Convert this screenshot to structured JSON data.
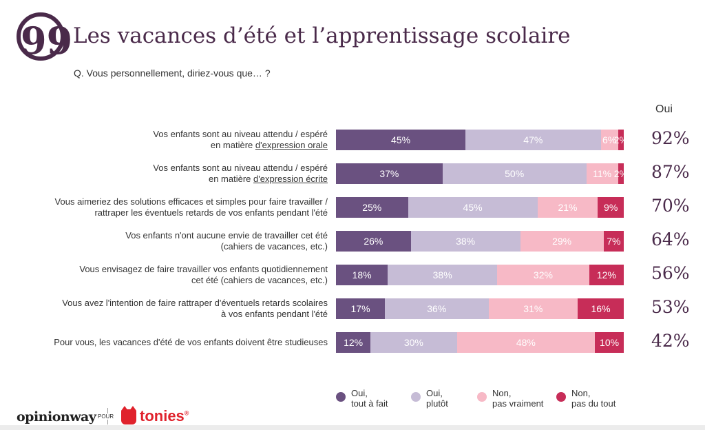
{
  "title": "Les vacances d’été et l’apprentissage scolaire",
  "question": "Q. Vous personnellement, diriez-vous que… ?",
  "oui_header": "Oui",
  "colors": {
    "tout_a_fait": "#6a5180",
    "plutot": "#c6bcd6",
    "pas_vraiment": "#f7b9c6",
    "pas_du_tout": "#c72d58"
  },
  "chart_data": {
    "type": "bar",
    "orientation": "horizontal-stacked-100",
    "series_names": [
      "Oui, tout à fait",
      "Oui, plutôt",
      "Non, pas vraiment",
      "Non, pas du tout"
    ],
    "rows": [
      {
        "line1": "Vos enfants sont au niveau attendu / espéré",
        "line2_plain": "en matière ",
        "line2_underlined": "d'expression orale",
        "values": [
          45,
          47,
          6,
          2
        ],
        "labels": [
          "45%",
          "47%",
          "6%",
          "2%"
        ],
        "total": "92%"
      },
      {
        "line1": "Vos enfants sont au niveau attendu / espéré",
        "line2_plain": "en matière ",
        "line2_underlined": "d'expression écrite",
        "values": [
          37,
          50,
          11,
          2
        ],
        "labels": [
          "37%",
          "50%",
          "11%",
          "2%"
        ],
        "total": "87%"
      },
      {
        "line1": "Vous aimeriez des solutions efficaces et simples pour faire travailler /",
        "line2_plain": "rattraper les éventuels retards de vos enfants pendant l'été",
        "line2_underlined": "",
        "values": [
          25,
          45,
          21,
          9
        ],
        "labels": [
          "25%",
          "45%",
          "21%",
          "9%"
        ],
        "total": "70%"
      },
      {
        "line1": "Vos enfants n'ont aucune envie de travailler cet été",
        "line2_plain": "(cahiers de vacances, etc.)",
        "line2_underlined": "",
        "values": [
          26,
          38,
          29,
          7
        ],
        "labels": [
          "26%",
          "38%",
          "29%",
          "7%"
        ],
        "total": "64%"
      },
      {
        "line1": "Vous envisagez de faire travailler vos enfants quotidiennement",
        "line2_plain": "cet été (cahiers de vacances, etc.)",
        "line2_underlined": "",
        "values": [
          18,
          38,
          32,
          12
        ],
        "labels": [
          "18%",
          "38%",
          "32%",
          "12%"
        ],
        "total": "56%"
      },
      {
        "line1": "Vous avez l'intention de faire rattraper d'éventuels retards scolaires",
        "line2_plain": "à vos enfants pendant l'été",
        "line2_underlined": "",
        "values": [
          17,
          36,
          31,
          16
        ],
        "labels": [
          "17%",
          "36%",
          "31%",
          "16%"
        ],
        "total": "53%"
      },
      {
        "line1": "Pour vous, les vacances d'été de vos enfants doivent être studieuses",
        "line2_plain": "",
        "line2_underlined": "",
        "values": [
          12,
          30,
          48,
          10
        ],
        "labels": [
          "12%",
          "30%",
          "48%",
          "10%"
        ],
        "total": "42%"
      }
    ],
    "legend_placement": "bottom"
  },
  "legend": [
    {
      "line1": "Oui,",
      "line2": "tout à fait"
    },
    {
      "line1": "Oui,",
      "line2": "plutôt"
    },
    {
      "line1": "Non,",
      "line2": "pas vraiment"
    },
    {
      "line1": "Non,",
      "line2": "pas du tout"
    }
  ],
  "footer": {
    "brand1": "opinionway",
    "pour": "POUR",
    "brand2": "tonies",
    "reg": "®"
  }
}
